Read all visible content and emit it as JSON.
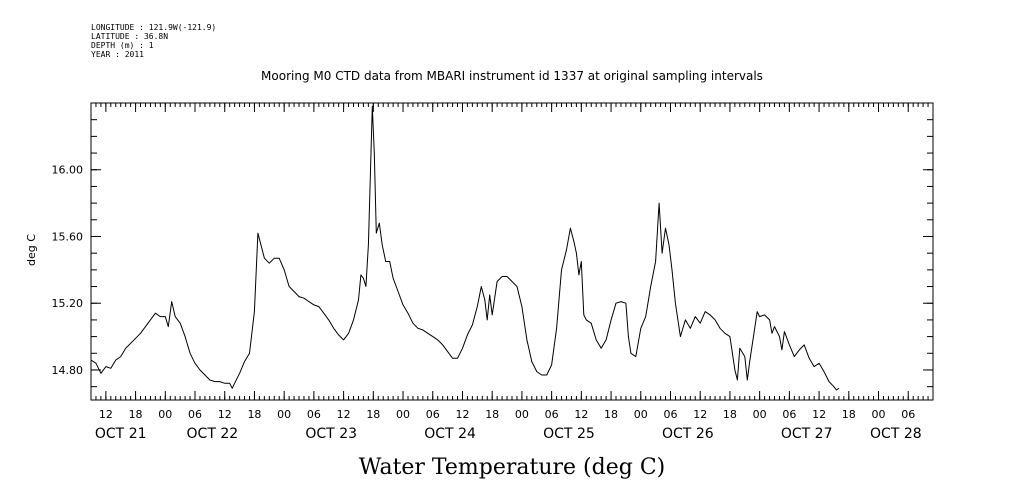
{
  "header": {
    "longitude": "LONGITUDE : 121.9W(-121.9)",
    "latitude": "LATITUDE : 36.8N",
    "depth": "DEPTH (m) : 1",
    "year": "YEAR : 2011"
  },
  "chart_data": {
    "type": "line",
    "title": "Mooring M0 CTD data from MBARI instrument id 1337 at original sampling intervals",
    "xlabel": "Water Temperature (deg C)",
    "ylabel": "deg C",
    "x_units": "hours since 2011-10-21 09:00",
    "xlim": [
      0,
      170
    ],
    "ylim": [
      14.62,
      16.4
    ],
    "yticks": [
      14.8,
      15.2,
      15.6,
      16.0
    ],
    "ytick_labels": [
      "14.80",
      "15.20",
      "15.60",
      "16.00"
    ],
    "hour_ticks": [
      {
        "t": 3,
        "label": "12"
      },
      {
        "t": 9,
        "label": "18"
      },
      {
        "t": 15,
        "label": "00"
      },
      {
        "t": 21,
        "label": "06"
      },
      {
        "t": 27,
        "label": "12"
      },
      {
        "t": 33,
        "label": "18"
      },
      {
        "t": 39,
        "label": "00"
      },
      {
        "t": 45,
        "label": "06"
      },
      {
        "t": 51,
        "label": "12"
      },
      {
        "t": 57,
        "label": "18"
      },
      {
        "t": 63,
        "label": "00"
      },
      {
        "t": 69,
        "label": "06"
      },
      {
        "t": 75,
        "label": "12"
      },
      {
        "t": 81,
        "label": "18"
      },
      {
        "t": 87,
        "label": "00"
      },
      {
        "t": 93,
        "label": "06"
      },
      {
        "t": 99,
        "label": "12"
      },
      {
        "t": 105,
        "label": "18"
      },
      {
        "t": 111,
        "label": "00"
      },
      {
        "t": 117,
        "label": "06"
      },
      {
        "t": 123,
        "label": "12"
      },
      {
        "t": 129,
        "label": "18"
      },
      {
        "t": 135,
        "label": "00"
      },
      {
        "t": 141,
        "label": "06"
      },
      {
        "t": 147,
        "label": "12"
      },
      {
        "t": 153,
        "label": "18"
      },
      {
        "t": 159,
        "label": "00"
      },
      {
        "t": 165,
        "label": "06"
      }
    ],
    "day_labels": [
      {
        "t": 6,
        "label": "OCT 21"
      },
      {
        "t": 24.5,
        "label": "OCT 22"
      },
      {
        "t": 48.5,
        "label": "OCT 23"
      },
      {
        "t": 72.5,
        "label": "OCT 24"
      },
      {
        "t": 96.5,
        "label": "OCT 25"
      },
      {
        "t": 120.5,
        "label": "OCT 26"
      },
      {
        "t": 144.5,
        "label": "OCT 27"
      },
      {
        "t": 162.5,
        "label": "OCT 28"
      }
    ],
    "grid": false,
    "series": [
      {
        "color": "#000000",
        "points": [
          [
            0,
            14.86
          ],
          [
            1,
            14.84
          ],
          [
            2,
            14.78
          ],
          [
            3,
            14.82
          ],
          [
            4,
            14.81
          ],
          [
            5,
            14.86
          ],
          [
            6,
            14.88
          ],
          [
            7,
            14.93
          ],
          [
            8,
            14.96
          ],
          [
            9,
            14.99
          ],
          [
            10,
            15.02
          ],
          [
            11,
            15.06
          ],
          [
            12,
            15.1
          ],
          [
            13,
            15.14
          ],
          [
            14,
            15.12
          ],
          [
            15,
            15.12
          ],
          [
            15.6,
            15.06
          ],
          [
            16.3,
            15.21
          ],
          [
            17,
            15.12
          ],
          [
            18,
            15.08
          ],
          [
            19,
            15.0
          ],
          [
            20,
            14.9
          ],
          [
            21,
            14.84
          ],
          [
            22,
            14.8
          ],
          [
            23,
            14.77
          ],
          [
            24,
            14.74
          ],
          [
            25,
            14.73
          ],
          [
            26,
            14.73
          ],
          [
            27,
            14.72
          ],
          [
            28,
            14.72
          ],
          [
            28.5,
            14.69
          ],
          [
            29,
            14.72
          ],
          [
            30,
            14.78
          ],
          [
            31,
            14.85
          ],
          [
            32,
            14.9
          ],
          [
            33,
            15.15
          ],
          [
            33.7,
            15.62
          ],
          [
            34.3,
            15.55
          ],
          [
            35,
            15.47
          ],
          [
            36,
            15.44
          ],
          [
            37,
            15.47
          ],
          [
            38,
            15.47
          ],
          [
            39,
            15.4
          ],
          [
            40,
            15.3
          ],
          [
            41,
            15.27
          ],
          [
            42,
            15.24
          ],
          [
            43,
            15.23
          ],
          [
            44,
            15.21
          ],
          [
            45,
            15.19
          ],
          [
            46,
            15.18
          ],
          [
            47,
            15.14
          ],
          [
            48,
            15.1
          ],
          [
            49,
            15.05
          ],
          [
            50,
            15.01
          ],
          [
            51,
            14.98
          ],
          [
            52,
            15.02
          ],
          [
            53,
            15.1
          ],
          [
            54,
            15.22
          ],
          [
            54.5,
            15.37
          ],
          [
            55,
            15.35
          ],
          [
            55.5,
            15.3
          ],
          [
            56,
            15.55
          ],
          [
            56.8,
            16.38
          ],
          [
            57.2,
            16.1
          ],
          [
            57.6,
            15.62
          ],
          [
            58.2,
            15.68
          ],
          [
            58.8,
            15.55
          ],
          [
            59.5,
            15.45
          ],
          [
            60.3,
            15.45
          ],
          [
            61,
            15.35
          ],
          [
            62,
            15.27
          ],
          [
            63,
            15.19
          ],
          [
            64,
            15.14
          ],
          [
            65,
            15.08
          ],
          [
            66,
            15.05
          ],
          [
            67,
            15.04
          ],
          [
            68,
            15.02
          ],
          [
            69,
            15.0
          ],
          [
            70,
            14.98
          ],
          [
            71,
            14.95
          ],
          [
            72,
            14.91
          ],
          [
            73,
            14.87
          ],
          [
            74,
            14.87
          ],
          [
            75,
            14.93
          ],
          [
            76,
            15.01
          ],
          [
            77,
            15.07
          ],
          [
            78,
            15.18
          ],
          [
            78.8,
            15.3
          ],
          [
            79.5,
            15.22
          ],
          [
            80,
            15.1
          ],
          [
            80.5,
            15.25
          ],
          [
            81,
            15.13
          ],
          [
            82,
            15.33
          ],
          [
            83,
            15.36
          ],
          [
            84,
            15.36
          ],
          [
            85,
            15.33
          ],
          [
            86,
            15.3
          ],
          [
            87,
            15.18
          ],
          [
            88,
            14.98
          ],
          [
            89,
            14.85
          ],
          [
            90,
            14.79
          ],
          [
            91,
            14.77
          ],
          [
            92,
            14.77
          ],
          [
            93,
            14.83
          ],
          [
            94,
            15.05
          ],
          [
            95,
            15.4
          ],
          [
            96,
            15.52
          ],
          [
            96.8,
            15.65
          ],
          [
            97.5,
            15.57
          ],
          [
            98,
            15.5
          ],
          [
            98.5,
            15.37
          ],
          [
            99,
            15.45
          ],
          [
            99.5,
            15.13
          ],
          [
            100,
            15.1
          ],
          [
            101,
            15.08
          ],
          [
            102,
            14.98
          ],
          [
            103,
            14.93
          ],
          [
            104,
            14.98
          ],
          [
            105,
            15.1
          ],
          [
            106,
            15.2
          ],
          [
            107,
            15.21
          ],
          [
            108,
            15.2
          ],
          [
            108.5,
            15.0
          ],
          [
            109,
            14.9
          ],
          [
            110,
            14.88
          ],
          [
            111,
            15.05
          ],
          [
            112,
            15.12
          ],
          [
            113,
            15.3
          ],
          [
            114,
            15.45
          ],
          [
            114.7,
            15.8
          ],
          [
            115.3,
            15.5
          ],
          [
            116,
            15.65
          ],
          [
            116.7,
            15.55
          ],
          [
            117.3,
            15.4
          ],
          [
            118,
            15.2
          ],
          [
            119,
            15.0
          ],
          [
            120,
            15.1
          ],
          [
            121,
            15.05
          ],
          [
            122,
            15.12
          ],
          [
            123,
            15.08
          ],
          [
            124,
            15.15
          ],
          [
            125,
            15.13
          ],
          [
            126,
            15.1
          ],
          [
            127,
            15.05
          ],
          [
            128,
            15.02
          ],
          [
            129,
            15.0
          ],
          [
            130,
            14.8
          ],
          [
            130.5,
            14.74
          ],
          [
            131,
            14.93
          ],
          [
            132,
            14.88
          ],
          [
            132.5,
            14.74
          ],
          [
            133,
            14.85
          ],
          [
            134,
            15.05
          ],
          [
            134.5,
            15.15
          ],
          [
            135,
            15.12
          ],
          [
            136,
            15.13
          ],
          [
            137,
            15.1
          ],
          [
            137.5,
            15.02
          ],
          [
            138,
            15.06
          ],
          [
            139,
            15.0
          ],
          [
            139.5,
            14.92
          ],
          [
            140,
            15.03
          ],
          [
            141,
            14.95
          ],
          [
            142,
            14.88
          ],
          [
            143,
            14.92
          ],
          [
            144,
            14.95
          ],
          [
            145,
            14.87
          ],
          [
            146,
            14.82
          ],
          [
            147,
            14.84
          ],
          [
            148,
            14.79
          ],
          [
            149,
            14.73
          ],
          [
            150,
            14.7
          ],
          [
            150.5,
            14.68
          ],
          [
            151,
            14.69
          ]
        ]
      }
    ]
  }
}
